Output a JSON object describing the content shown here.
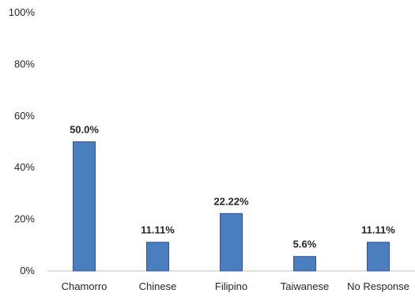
{
  "chart_data": {
    "type": "bar",
    "categories": [
      "Chamorro",
      "Chinese",
      "Filipino",
      "Taiwanese",
      "No Response"
    ],
    "values": [
      50.0,
      11.11,
      22.22,
      5.6,
      11.11
    ],
    "data_labels": [
      "50.0%",
      "11.11%",
      "22.22%",
      "5.6%",
      "11.11%"
    ],
    "ylim": [
      0,
      100
    ],
    "yticks": [
      0,
      20,
      40,
      60,
      80,
      100
    ],
    "ytick_labels": [
      "0%",
      "20%",
      "40%",
      "60%",
      "80%",
      "100%"
    ],
    "grid": false,
    "legend": "none",
    "colors": {
      "bar_fill": "#4a7ebf",
      "bar_stroke": "#2f5597",
      "axis": "#bfbfbf",
      "text": "#262626"
    }
  }
}
